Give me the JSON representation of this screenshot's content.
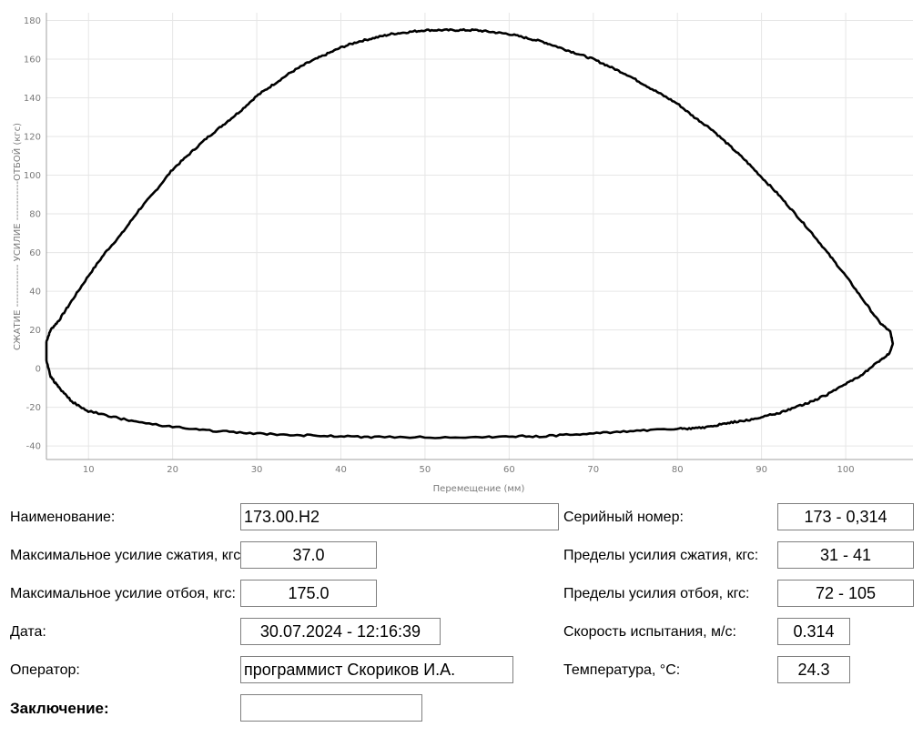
{
  "chart_data": {
    "type": "line",
    "xlabel": "Перемещение (мм)",
    "ylabel": "СЖАТИЕ ------------- УСИЛИЕ ------------ОТБОЙ (кгс)",
    "xlim": [
      5,
      108
    ],
    "ylim": [
      -47,
      184
    ],
    "xticks": [
      10,
      20,
      30,
      40,
      50,
      60,
      70,
      80,
      90,
      100
    ],
    "yticks": [
      -40,
      -20,
      0,
      20,
      40,
      60,
      80,
      100,
      120,
      140,
      160,
      180
    ],
    "grid": true,
    "series": [
      {
        "points": [
          [
            5,
            14
          ],
          [
            5.5,
            20
          ],
          [
            6.5,
            25
          ],
          [
            8,
            35
          ],
          [
            10,
            48
          ],
          [
            12,
            60
          ],
          [
            14,
            70
          ],
          [
            16,
            82
          ],
          [
            18,
            92
          ],
          [
            20,
            103
          ],
          [
            22,
            111
          ],
          [
            24,
            119
          ],
          [
            26,
            126
          ],
          [
            28,
            133
          ],
          [
            30,
            141
          ],
          [
            32,
            147
          ],
          [
            34,
            153
          ],
          [
            36,
            158
          ],
          [
            38,
            162
          ],
          [
            40,
            166
          ],
          [
            42,
            169
          ],
          [
            44,
            171
          ],
          [
            46,
            173
          ],
          [
            48,
            174
          ],
          [
            50,
            175
          ],
          [
            52,
            175
          ],
          [
            54,
            175
          ],
          [
            56,
            175
          ],
          [
            58,
            174
          ],
          [
            60,
            173
          ],
          [
            62,
            171
          ],
          [
            64,
            169
          ],
          [
            66,
            166
          ],
          [
            68,
            163
          ],
          [
            70,
            160
          ],
          [
            72,
            156
          ],
          [
            74,
            152
          ],
          [
            76,
            147
          ],
          [
            78,
            142
          ],
          [
            80,
            137
          ],
          [
            82,
            130
          ],
          [
            84,
            124
          ],
          [
            86,
            116
          ],
          [
            88,
            108
          ],
          [
            90,
            99
          ],
          [
            92,
            90
          ],
          [
            94,
            80
          ],
          [
            96,
            70
          ],
          [
            98,
            59
          ],
          [
            100,
            48
          ],
          [
            102,
            36
          ],
          [
            104,
            24
          ],
          [
            105.3,
            19
          ],
          [
            105.6,
            13
          ],
          [
            105.2,
            8
          ],
          [
            104,
            4
          ],
          [
            102,
            -3
          ],
          [
            100,
            -8
          ],
          [
            98,
            -13
          ],
          [
            96,
            -17
          ],
          [
            94,
            -20
          ],
          [
            92,
            -23
          ],
          [
            90,
            -25
          ],
          [
            88,
            -27
          ],
          [
            86,
            -28
          ],
          [
            84,
            -30
          ],
          [
            82,
            -31
          ],
          [
            80,
            -31
          ],
          [
            76,
            -32
          ],
          [
            72,
            -33
          ],
          [
            68,
            -34
          ],
          [
            64,
            -35
          ],
          [
            60,
            -35
          ],
          [
            56,
            -35.5
          ],
          [
            50,
            -35.5
          ],
          [
            44,
            -35.5
          ],
          [
            40,
            -35
          ],
          [
            36,
            -34.5
          ],
          [
            32,
            -34
          ],
          [
            28,
            -33
          ],
          [
            24,
            -32
          ],
          [
            20,
            -30
          ],
          [
            16,
            -28
          ],
          [
            13,
            -25
          ],
          [
            10,
            -22
          ],
          [
            8,
            -17
          ],
          [
            6.5,
            -10
          ],
          [
            5.5,
            -4
          ],
          [
            5,
            4
          ],
          [
            5,
            14
          ]
        ]
      }
    ]
  },
  "form": {
    "name_label": "Наименование:",
    "name_value": "173.00.Н2",
    "serial_label": "Серийный номер:",
    "serial_value": "173 - 0,314",
    "max_comp_label": "Максимальное усилие сжатия, кгс:",
    "max_comp_value": "37.0",
    "comp_limits_label": "Пределы усилия сжатия, кгс:",
    "comp_limits_value": "31 - 41",
    "max_reb_label": "Максимальное усилие отбоя, кгс:",
    "max_reb_value": "175.0",
    "reb_limits_label": "Пределы усилия отбоя, кгс:",
    "reb_limits_value": "72 - 105",
    "date_label": "Дата:",
    "date_value": "30.07.2024 - 12:16:39",
    "speed_label": "Скорость испытания, м/с:",
    "speed_value": "0.314",
    "operator_label": "Оператор:",
    "operator_value": "программист Скориков И.А.",
    "temp_label": "Температура, °С:",
    "temp_value": "24.3",
    "conclusion_label": "Заключение:",
    "conclusion_value": ""
  }
}
